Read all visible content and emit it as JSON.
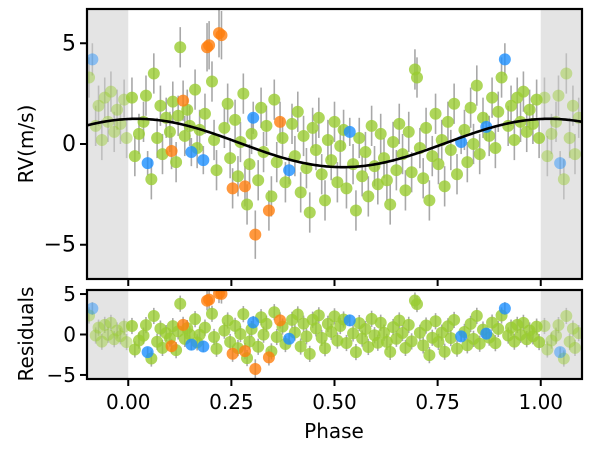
{
  "chart_data": [
    {
      "type": "scatter",
      "panel": "top",
      "ylabel": "RV(m/s)",
      "xlabel": "",
      "xlim": [
        -0.1,
        1.1
      ],
      "ylim": [
        -6.7,
        6.7
      ],
      "xticks": [
        0.0,
        0.25,
        0.5,
        0.75,
        1.0
      ],
      "yticks": [
        -5,
        0,
        5
      ],
      "ytick_labels": [
        "−5",
        "0",
        "5"
      ],
      "shaded_regions": [
        [
          -0.1,
          0.0
        ],
        [
          1.0,
          1.1
        ]
      ],
      "colors": {
        "green": "#9acd32",
        "blue": "#1e90ff",
        "orange": "#ff7f0e",
        "model": "#000000",
        "errorbar": "#999999",
        "shade": "#e4e4e4"
      },
      "model": {
        "name": "",
        "type": "sinusoid",
        "mean": 0.05,
        "amplitude": 1.2,
        "peak_phase": 0.02
      },
      "series": [
        {
          "color_key": "blue",
          "points": [
            {
              "x": 0.047,
              "y": -0.95,
              "err": 0.6
            },
            {
              "x": 0.153,
              "y": -0.4,
              "err": 0.7
            },
            {
              "x": 0.182,
              "y": -0.8,
              "err": 0.7
            },
            {
              "x": 0.303,
              "y": 1.3,
              "err": 0.8
            },
            {
              "x": 0.39,
              "y": -1.3,
              "err": 0.7
            },
            {
              "x": 0.537,
              "y": 0.6,
              "err": 0.7
            },
            {
              "x": 0.807,
              "y": 0.1,
              "err": 0.6
            },
            {
              "x": 0.868,
              "y": 0.85,
              "err": 0.7
            },
            {
              "x": 0.913,
              "y": 4.2,
              "err": 0.8
            }
          ]
        },
        {
          "color_key": "orange",
          "points": [
            {
              "x": 0.105,
              "y": -0.35,
              "err": 0.9
            },
            {
              "x": 0.133,
              "y": 2.15,
              "err": 1.0
            },
            {
              "x": 0.191,
              "y": 4.8,
              "err": 1.2
            },
            {
              "x": 0.196,
              "y": 4.9,
              "err": 1.2
            },
            {
              "x": 0.22,
              "y": 5.5,
              "err": 1.2
            },
            {
              "x": 0.226,
              "y": 5.4,
              "err": 1.2
            },
            {
              "x": 0.253,
              "y": -2.2,
              "err": 1.0
            },
            {
              "x": 0.283,
              "y": -2.1,
              "err": 1.0
            },
            {
              "x": 0.308,
              "y": -4.5,
              "err": 1.2
            },
            {
              "x": 0.341,
              "y": -3.3,
              "err": 1.0
            },
            {
              "x": 0.368,
              "y": 1.1,
              "err": 1.0
            }
          ]
        },
        {
          "color_key": "green",
          "points": [
            {
              "x": 0.009,
              "y": 2.3,
              "err": 1.0
            },
            {
              "x": 0.016,
              "y": -0.6,
              "err": 1.0
            },
            {
              "x": 0.026,
              "y": 0.5,
              "err": 1.0
            },
            {
              "x": 0.037,
              "y": 1.1,
              "err": 1.0
            },
            {
              "x": 0.043,
              "y": 2.4,
              "err": 1.0
            },
            {
              "x": 0.056,
              "y": -1.75,
              "err": 1.0
            },
            {
              "x": 0.062,
              "y": 3.5,
              "err": 1.0
            },
            {
              "x": 0.07,
              "y": 0.3,
              "err": 1.0
            },
            {
              "x": 0.078,
              "y": 1.9,
              "err": 1.0
            },
            {
              "x": 0.083,
              "y": -0.5,
              "err": 1.0
            },
            {
              "x": 0.092,
              "y": 1.3,
              "err": 1.0
            },
            {
              "x": 0.101,
              "y": 0.6,
              "err": 1.0
            },
            {
              "x": 0.108,
              "y": 2.1,
              "err": 1.0
            },
            {
              "x": 0.116,
              "y": -0.9,
              "err": 1.0
            },
            {
              "x": 0.121,
              "y": 1.4,
              "err": 1.0
            },
            {
              "x": 0.126,
              "y": 4.8,
              "err": 1.0
            },
            {
              "x": 0.137,
              "y": 0.4,
              "err": 1.0
            },
            {
              "x": 0.143,
              "y": 1.7,
              "err": 1.0
            },
            {
              "x": 0.149,
              "y": 0.9,
              "err": 1.0
            },
            {
              "x": 0.162,
              "y": 2.7,
              "err": 1.0
            },
            {
              "x": 0.167,
              "y": -0.2,
              "err": 1.0
            },
            {
              "x": 0.173,
              "y": 0.7,
              "err": 1.0
            },
            {
              "x": 0.186,
              "y": 1.5,
              "err": 1.0
            },
            {
              "x": 0.203,
              "y": 3.1,
              "err": 1.0
            },
            {
              "x": 0.208,
              "y": 0.2,
              "err": 1.0
            },
            {
              "x": 0.214,
              "y": -1.3,
              "err": 1.0
            },
            {
              "x": 0.233,
              "y": 0.8,
              "err": 1.0
            },
            {
              "x": 0.241,
              "y": 2.0,
              "err": 1.0
            },
            {
              "x": 0.247,
              "y": -0.7,
              "err": 1.0
            },
            {
              "x": 0.259,
              "y": 1.2,
              "err": 1.0
            },
            {
              "x": 0.266,
              "y": -1.6,
              "err": 1.0
            },
            {
              "x": 0.272,
              "y": 0.1,
              "err": 1.0
            },
            {
              "x": 0.279,
              "y": 2.5,
              "err": 1.0
            },
            {
              "x": 0.288,
              "y": -3.0,
              "err": 1.0
            },
            {
              "x": 0.294,
              "y": -1.0,
              "err": 1.0
            },
            {
              "x": 0.299,
              "y": 0.5,
              "err": 1.0
            },
            {
              "x": 0.315,
              "y": -1.8,
              "err": 1.0
            },
            {
              "x": 0.322,
              "y": 1.8,
              "err": 1.0
            },
            {
              "x": 0.328,
              "y": -0.4,
              "err": 1.0
            },
            {
              "x": 0.335,
              "y": 0.9,
              "err": 1.0
            },
            {
              "x": 0.347,
              "y": -2.6,
              "err": 1.0
            },
            {
              "x": 0.354,
              "y": 2.2,
              "err": 1.0
            },
            {
              "x": 0.36,
              "y": -0.9,
              "err": 1.0
            },
            {
              "x": 0.374,
              "y": 0.3,
              "err": 1.0
            },
            {
              "x": 0.381,
              "y": -1.9,
              "err": 1.0
            },
            {
              "x": 0.397,
              "y": 1.0,
              "err": 1.0
            },
            {
              "x": 0.404,
              "y": -0.6,
              "err": 1.0
            },
            {
              "x": 0.411,
              "y": 1.6,
              "err": 1.0
            },
            {
              "x": 0.418,
              "y": -2.4,
              "err": 1.0
            },
            {
              "x": 0.425,
              "y": 0.4,
              "err": 1.0
            },
            {
              "x": 0.432,
              "y": -1.2,
              "err": 1.0
            },
            {
              "x": 0.44,
              "y": -3.4,
              "err": 1.0
            },
            {
              "x": 0.447,
              "y": 0.8,
              "err": 1.0
            },
            {
              "x": 0.455,
              "y": -0.3,
              "err": 1.0
            },
            {
              "x": 0.462,
              "y": 1.3,
              "err": 1.0
            },
            {
              "x": 0.469,
              "y": -1.5,
              "err": 1.0
            },
            {
              "x": 0.477,
              "y": -2.8,
              "err": 1.0
            },
            {
              "x": 0.484,
              "y": 0.2,
              "err": 1.0
            },
            {
              "x": 0.492,
              "y": -0.8,
              "err": 1.0
            },
            {
              "x": 0.5,
              "y": 1.1,
              "err": 1.0
            },
            {
              "x": 0.507,
              "y": -1.9,
              "err": 1.0
            },
            {
              "x": 0.514,
              "y": -0.1,
              "err": 1.0
            },
            {
              "x": 0.522,
              "y": 0.7,
              "err": 1.0
            },
            {
              "x": 0.529,
              "y": -2.2,
              "err": 1.0
            },
            {
              "x": 0.545,
              "y": -1.0,
              "err": 1.0
            },
            {
              "x": 0.552,
              "y": -3.3,
              "err": 1.0
            },
            {
              "x": 0.56,
              "y": 0.3,
              "err": 1.0
            },
            {
              "x": 0.567,
              "y": -1.6,
              "err": 1.0
            },
            {
              "x": 0.575,
              "y": -0.4,
              "err": 1.0
            },
            {
              "x": 0.582,
              "y": -2.6,
              "err": 1.0
            },
            {
              "x": 0.59,
              "y": 0.9,
              "err": 1.0
            },
            {
              "x": 0.597,
              "y": -1.1,
              "err": 1.0
            },
            {
              "x": 0.605,
              "y": -2.0,
              "err": 1.0
            },
            {
              "x": 0.612,
              "y": 0.5,
              "err": 1.0
            },
            {
              "x": 0.62,
              "y": -0.7,
              "err": 1.0
            },
            {
              "x": 0.627,
              "y": -1.8,
              "err": 1.0
            },
            {
              "x": 0.635,
              "y": -3.0,
              "err": 1.0
            },
            {
              "x": 0.642,
              "y": 0.1,
              "err": 1.0
            },
            {
              "x": 0.65,
              "y": -1.3,
              "err": 1.0
            },
            {
              "x": 0.657,
              "y": 1.0,
              "err": 1.0
            },
            {
              "x": 0.665,
              "y": -0.5,
              "err": 1.0
            },
            {
              "x": 0.672,
              "y": -2.3,
              "err": 1.0
            },
            {
              "x": 0.68,
              "y": 0.6,
              "err": 1.0
            },
            {
              "x": 0.687,
              "y": -1.4,
              "err": 1.0
            },
            {
              "x": 0.695,
              "y": 3.7,
              "err": 1.0
            },
            {
              "x": 0.7,
              "y": 3.3,
              "err": 1.0
            },
            {
              "x": 0.707,
              "y": -0.2,
              "err": 1.0
            },
            {
              "x": 0.715,
              "y": -1.7,
              "err": 1.0
            },
            {
              "x": 0.722,
              "y": 0.8,
              "err": 1.0
            },
            {
              "x": 0.73,
              "y": -2.8,
              "err": 1.0
            },
            {
              "x": 0.737,
              "y": -0.6,
              "err": 1.0
            },
            {
              "x": 0.745,
              "y": 1.5,
              "err": 1.0
            },
            {
              "x": 0.752,
              "y": -1.0,
              "err": 1.0
            },
            {
              "x": 0.76,
              "y": 0.2,
              "err": 1.0
            },
            {
              "x": 0.767,
              "y": -2.1,
              "err": 1.0
            },
            {
              "x": 0.775,
              "y": 1.1,
              "err": 1.0
            },
            {
              "x": 0.782,
              "y": -0.3,
              "err": 1.0
            },
            {
              "x": 0.79,
              "y": 2.0,
              "err": 1.0
            },
            {
              "x": 0.797,
              "y": -1.5,
              "err": 1.0
            },
            {
              "x": 0.815,
              "y": 0.7,
              "err": 1.0
            },
            {
              "x": 0.822,
              "y": -0.9,
              "err": 1.0
            },
            {
              "x": 0.83,
              "y": 1.8,
              "err": 1.0
            },
            {
              "x": 0.837,
              "y": 0.0,
              "err": 1.0
            },
            {
              "x": 0.845,
              "y": 2.9,
              "err": 1.0
            },
            {
              "x": 0.852,
              "y": -0.5,
              "err": 1.0
            },
            {
              "x": 0.86,
              "y": 1.3,
              "err": 1.0
            },
            {
              "x": 0.875,
              "y": 0.4,
              "err": 1.0
            },
            {
              "x": 0.882,
              "y": 2.3,
              "err": 1.0
            },
            {
              "x": 0.89,
              "y": -0.2,
              "err": 1.0
            },
            {
              "x": 0.897,
              "y": 1.6,
              "err": 1.0
            },
            {
              "x": 0.905,
              "y": 3.3,
              "err": 1.0
            },
            {
              "x": 0.921,
              "y": 0.9,
              "err": 1.0
            },
            {
              "x": 0.928,
              "y": 1.9,
              "err": 1.0
            },
            {
              "x": 0.936,
              "y": 0.2,
              "err": 1.0
            },
            {
              "x": 0.943,
              "y": 2.3,
              "err": 1.0
            },
            {
              "x": 0.951,
              "y": 1.1,
              "err": 1.0
            },
            {
              "x": 0.958,
              "y": 2.6,
              "err": 1.0
            },
            {
              "x": 0.966,
              "y": 0.6,
              "err": 1.0
            },
            {
              "x": 0.973,
              "y": 1.7,
              "err": 1.0
            },
            {
              "x": 0.981,
              "y": 1.0,
              "err": 1.0
            },
            {
              "x": 0.99,
              "y": 2.2,
              "err": 1.0
            },
            {
              "x": 0.996,
              "y": 0.3,
              "err": 1.0
            }
          ]
        }
      ]
    },
    {
      "type": "scatter",
      "panel": "bottom",
      "ylabel": "Residuals",
      "xlabel": "Phase",
      "xlim": [
        -0.1,
        1.1
      ],
      "ylim": [
        -5.5,
        5.5
      ],
      "xticks": [
        0.0,
        0.25,
        0.5,
        0.75,
        1.0
      ],
      "xtick_labels": [
        "0.00",
        "0.25",
        "0.50",
        "0.75",
        "1.00"
      ],
      "yticks": [
        -5,
        0,
        5
      ],
      "ytick_labels": [
        "−5",
        "0",
        "5"
      ],
      "shaded_regions": [
        [
          -0.1,
          0.0
        ],
        [
          1.0,
          1.1
        ]
      ],
      "residuals_of": "top"
    }
  ]
}
